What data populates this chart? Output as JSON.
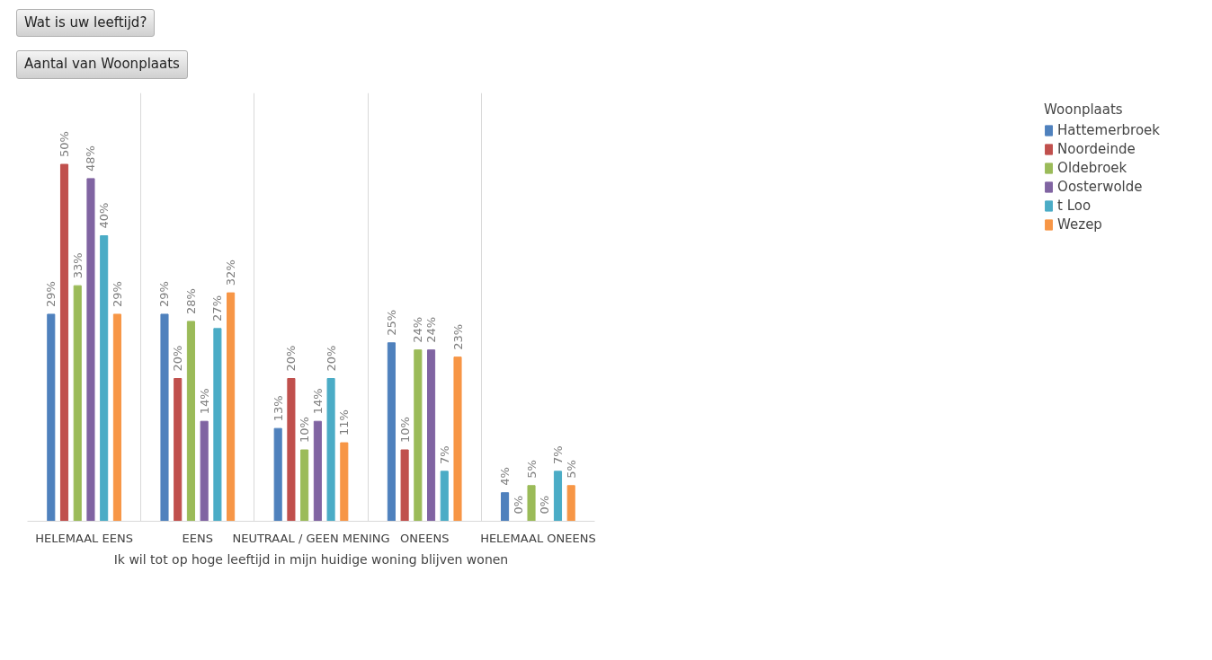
{
  "chart_data": {
    "type": "bar",
    "annotations": [
      "Wat is uw leeftijd?",
      "Aantal van Woonplaats"
    ],
    "xlabel": "Ik wil tot op hoge leeftijd in mijn huidige woning blijven wonen",
    "legend_title": "Woonplaats",
    "legend": "right",
    "tick_labels": "x",
    "grid": "x",
    "categories": [
      "HELEMAAL EENS",
      "EENS",
      "NEUTRAAL / GEEN MENING",
      "ONEENS",
      "HELEMAAL ONEENS"
    ],
    "series": [
      {
        "name": "Hattemerbroek",
        "color": "#4f81bd",
        "values": [
          29,
          29,
          13,
          25,
          4
        ],
        "value_labels": [
          "29%",
          "29%",
          "13%",
          "25%",
          "4%"
        ]
      },
      {
        "name": "Noordeinde",
        "color": "#c0504d",
        "values": [
          50,
          20,
          20,
          10,
          0
        ],
        "value_labels": [
          "50%",
          "20%",
          "20%",
          "10%",
          "0%"
        ]
      },
      {
        "name": "Oldebroek",
        "color": "#9bbb59",
        "values": [
          33,
          28,
          10,
          24,
          5
        ],
        "value_labels": [
          "33%",
          "28%",
          "10%",
          "24%",
          "5%"
        ]
      },
      {
        "name": "Oosterwolde",
        "color": "#8064a2",
        "values": [
          48,
          14,
          14,
          24,
          0
        ],
        "value_labels": [
          "48%",
          "14%",
          "14%",
          "24%",
          "0%"
        ]
      },
      {
        "name": "t Loo",
        "color": "#4bacc6",
        "values": [
          40,
          27,
          20,
          7,
          7
        ],
        "value_labels": [
          "40%",
          "27%",
          "20%",
          "7%",
          "7%"
        ]
      },
      {
        "name": "Wezep",
        "color": "#f79646",
        "values": [
          29,
          32,
          11,
          23,
          5
        ],
        "value_labels": [
          "29%",
          "32%",
          "11%",
          "23%",
          "5%"
        ]
      }
    ]
  }
}
